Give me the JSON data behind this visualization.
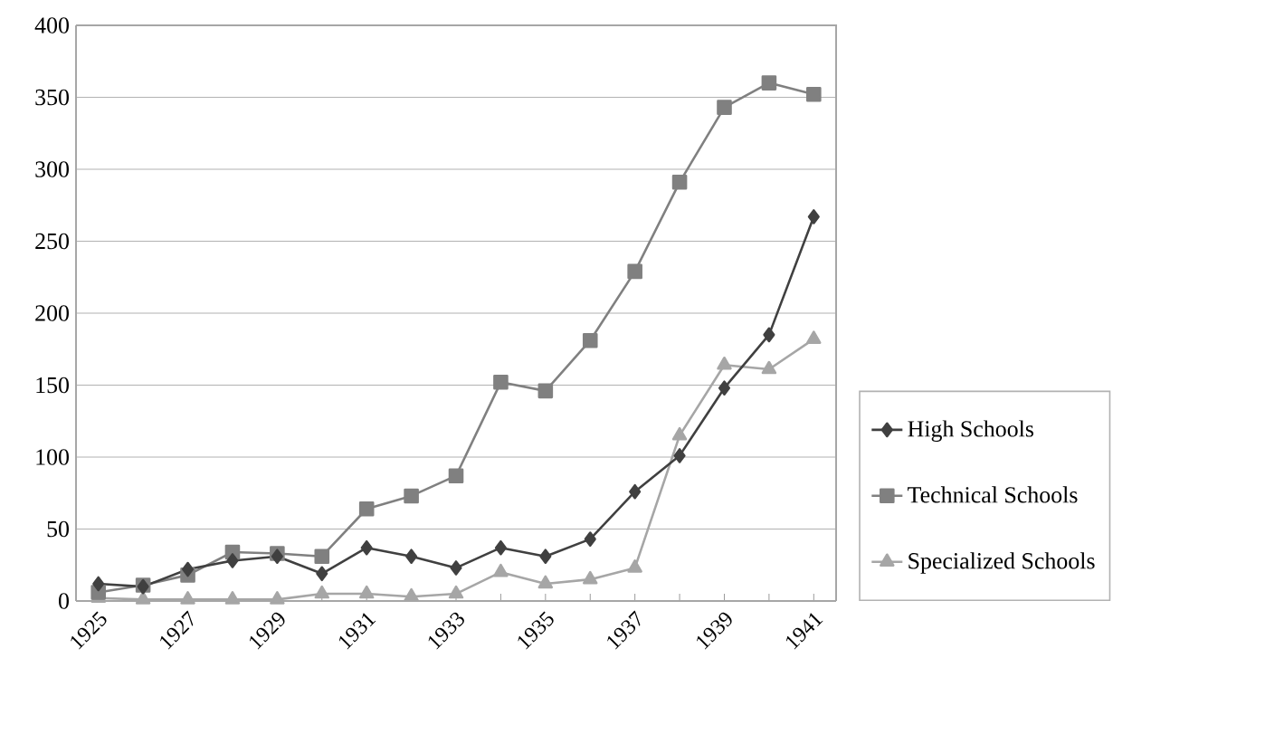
{
  "chart_data": {
    "type": "line",
    "categories": [
      "1925",
      null,
      "1927",
      null,
      "1929",
      null,
      "1931",
      null,
      "1933",
      null,
      "1935",
      null,
      "1937",
      null,
      "1939",
      null,
      "1941"
    ],
    "series": [
      {
        "name": "High Schools",
        "color": "#404040",
        "marker": "diamond",
        "values": [
          12,
          10,
          22,
          28,
          31,
          19,
          37,
          31,
          23,
          37,
          31,
          43,
          76,
          101,
          148,
          185,
          267
        ]
      },
      {
        "name": "Technical Schools",
        "color": "#808080",
        "marker": "square",
        "values": [
          6,
          11,
          18,
          34,
          33,
          31,
          64,
          73,
          87,
          152,
          146,
          181,
          229,
          291,
          343,
          360,
          352
        ]
      },
      {
        "name": "Specialized Schools",
        "color": "#a6a6a6",
        "marker": "triangle",
        "values": [
          2,
          1,
          1,
          1,
          1,
          5,
          5,
          3,
          5,
          20,
          12,
          15,
          23,
          115,
          164,
          161,
          182
        ]
      }
    ],
    "ylim": [
      0,
      400
    ],
    "yticks": [
      0,
      50,
      100,
      150,
      200,
      250,
      300,
      350,
      400
    ],
    "grid": "y",
    "legend": "right",
    "line_style": "solid"
  }
}
